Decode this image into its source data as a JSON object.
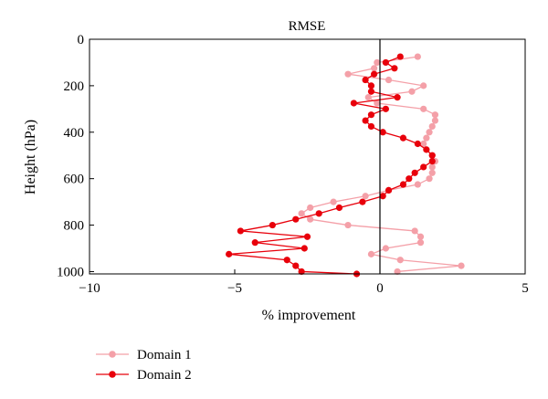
{
  "chart_data": {
    "type": "line",
    "title": "RMSE",
    "xlabel": "% improvement",
    "ylabel": "Height (hPa)",
    "xlim": [
      -10,
      5
    ],
    "ylim": [
      1010,
      0
    ],
    "y_inverted": true,
    "xticks": [
      -10,
      -5,
      0,
      5
    ],
    "yticks": [
      0,
      200,
      400,
      600,
      800,
      1000
    ],
    "xtick_labels": [
      "−10",
      "−5",
      "0",
      "5"
    ],
    "ytick_labels": [
      "0",
      "200",
      "400",
      "600",
      "800",
      "1000"
    ],
    "zero_line": 0,
    "grid": false,
    "legend_position": "bottom-left",
    "series": [
      {
        "name": "Domain 1",
        "color": "#f4a0a8",
        "points": [
          [
            1.3,
            75
          ],
          [
            -0.1,
            100
          ],
          [
            -0.2,
            125
          ],
          [
            -1.1,
            150
          ],
          [
            0.3,
            175
          ],
          [
            1.5,
            200
          ],
          [
            1.1,
            225
          ],
          [
            -0.4,
            250
          ],
          [
            -0.1,
            275
          ],
          [
            1.5,
            300
          ],
          [
            1.9,
            325
          ],
          [
            1.9,
            350
          ],
          [
            1.8,
            375
          ],
          [
            1.7,
            400
          ],
          [
            1.6,
            425
          ],
          [
            1.5,
            450
          ],
          [
            1.6,
            475
          ],
          [
            1.8,
            500
          ],
          [
            1.9,
            525
          ],
          [
            1.8,
            550
          ],
          [
            1.8,
            575
          ],
          [
            1.7,
            600
          ],
          [
            1.3,
            625
          ],
          [
            0.3,
            650
          ],
          [
            -0.5,
            675
          ],
          [
            -1.6,
            700
          ],
          [
            -2.4,
            725
          ],
          [
            -2.7,
            750
          ],
          [
            -2.4,
            775
          ],
          [
            -1.1,
            800
          ],
          [
            1.2,
            825
          ],
          [
            1.4,
            850
          ],
          [
            1.4,
            875
          ],
          [
            0.2,
            900
          ],
          [
            -0.3,
            925
          ],
          [
            0.7,
            950
          ],
          [
            2.8,
            975
          ],
          [
            0.6,
            1000
          ]
        ]
      },
      {
        "name": "Domain 2",
        "color": "#e8000b",
        "points": [
          [
            0.7,
            75
          ],
          [
            0.2,
            100
          ],
          [
            0.5,
            125
          ],
          [
            -0.2,
            150
          ],
          [
            -0.5,
            175
          ],
          [
            -0.3,
            200
          ],
          [
            -0.3,
            225
          ],
          [
            0.6,
            250
          ],
          [
            -0.9,
            275
          ],
          [
            0.2,
            300
          ],
          [
            -0.3,
            325
          ],
          [
            -0.5,
            350
          ],
          [
            -0.3,
            375
          ],
          [
            0.1,
            400
          ],
          [
            0.8,
            425
          ],
          [
            1.3,
            450
          ],
          [
            1.6,
            475
          ],
          [
            1.8,
            500
          ],
          [
            1.8,
            525
          ],
          [
            1.5,
            550
          ],
          [
            1.2,
            575
          ],
          [
            1.0,
            600
          ],
          [
            0.8,
            625
          ],
          [
            0.3,
            650
          ],
          [
            0.1,
            675
          ],
          [
            -0.6,
            700
          ],
          [
            -1.4,
            725
          ],
          [
            -2.1,
            750
          ],
          [
            -2.9,
            775
          ],
          [
            -3.7,
            800
          ],
          [
            -4.8,
            825
          ],
          [
            -2.5,
            850
          ],
          [
            -4.3,
            875
          ],
          [
            -2.6,
            900
          ],
          [
            -5.2,
            925
          ],
          [
            -3.2,
            950
          ],
          [
            -2.9,
            975
          ],
          [
            -2.7,
            1000
          ],
          [
            -0.8,
            1010
          ]
        ]
      }
    ]
  }
}
